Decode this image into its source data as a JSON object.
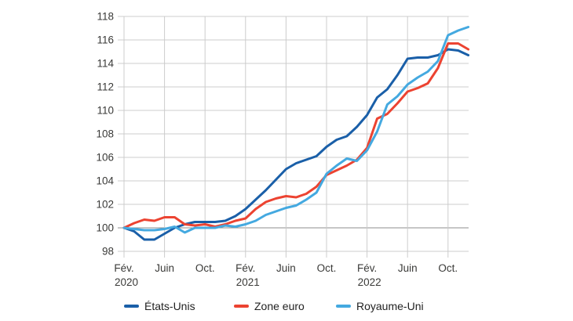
{
  "chart_data": {
    "type": "line",
    "title": "",
    "index_base": "100 = 2020-02",
    "x": [
      "2020-02",
      "2020-03",
      "2020-04",
      "2020-05",
      "2020-06",
      "2020-07",
      "2020-08",
      "2020-09",
      "2020-10",
      "2020-11",
      "2020-12",
      "2021-01",
      "2021-02",
      "2021-03",
      "2021-04",
      "2021-05",
      "2021-06",
      "2021-07",
      "2021-08",
      "2021-09",
      "2021-10",
      "2021-11",
      "2021-12",
      "2022-01",
      "2022-02",
      "2022-03",
      "2022-04",
      "2022-05",
      "2022-06",
      "2022-07",
      "2022-08",
      "2022-09",
      "2022-10",
      "2022-11",
      "2022-12"
    ],
    "series": [
      {
        "name": "États-Unis",
        "color": "#1a5fa8",
        "values": [
          100.0,
          99.7,
          99.0,
          99.0,
          99.5,
          100.0,
          100.3,
          100.5,
          100.5,
          100.5,
          100.6,
          101.0,
          101.6,
          102.4,
          103.2,
          104.1,
          105.0,
          105.5,
          105.8,
          106.1,
          106.9,
          107.5,
          107.8,
          108.6,
          109.6,
          111.1,
          111.8,
          113.0,
          114.4,
          114.5,
          114.5,
          114.7,
          115.2,
          115.1,
          114.7
        ]
      },
      {
        "name": "Zone euro",
        "color": "#ec4331",
        "values": [
          100.0,
          100.4,
          100.7,
          100.6,
          100.9,
          100.9,
          100.3,
          100.2,
          100.3,
          100.1,
          100.3,
          100.6,
          100.8,
          101.6,
          102.2,
          102.5,
          102.7,
          102.6,
          102.9,
          103.5,
          104.5,
          104.9,
          105.3,
          105.8,
          106.8,
          109.3,
          109.7,
          110.6,
          111.6,
          111.9,
          112.3,
          113.6,
          115.7,
          115.7,
          115.2
        ]
      },
      {
        "name": "Royaume-Uni",
        "color": "#44a9e0",
        "values": [
          100.0,
          99.9,
          99.8,
          99.8,
          99.9,
          100.1,
          99.6,
          100.0,
          100.0,
          100.0,
          100.2,
          100.1,
          100.3,
          100.6,
          101.1,
          101.4,
          101.7,
          101.9,
          102.4,
          103.0,
          104.6,
          105.3,
          105.9,
          105.7,
          106.6,
          108.2,
          110.5,
          111.2,
          112.2,
          112.8,
          113.3,
          114.2,
          116.4,
          116.8,
          117.1
        ]
      }
    ],
    "ylim": [
      98,
      118
    ],
    "ytick_step": 2,
    "grid": true,
    "baseline_value": 100,
    "legend_position": "bottom"
  },
  "axes": {
    "y_ticks": [
      "98",
      "100",
      "102",
      "104",
      "106",
      "108",
      "110",
      "112",
      "114",
      "116",
      "118"
    ],
    "x_ticks": [
      {
        "label": "Fév.",
        "year": "2020"
      },
      {
        "label": "Juin",
        "year": ""
      },
      {
        "label": "Oct.",
        "year": ""
      },
      {
        "label": "Fév.",
        "year": "2021"
      },
      {
        "label": "Juin",
        "year": ""
      },
      {
        "label": "Oct.",
        "year": ""
      },
      {
        "label": "Fév.",
        "year": "2022"
      },
      {
        "label": "Juin",
        "year": ""
      },
      {
        "label": "Oct.",
        "year": ""
      }
    ]
  },
  "legend": {
    "items": [
      {
        "label": "États-Unis",
        "color": "#1a5fa8"
      },
      {
        "label": "Zone euro",
        "color": "#ec4331"
      },
      {
        "label": "Royaume-Uni",
        "color": "#44a9e0"
      }
    ]
  },
  "colors": {
    "grid": "#cccccc",
    "grid_baseline": "#8c8c8c",
    "tick_text": "#3a3a38",
    "legend_text": "#222222",
    "background": "#ffffff"
  }
}
